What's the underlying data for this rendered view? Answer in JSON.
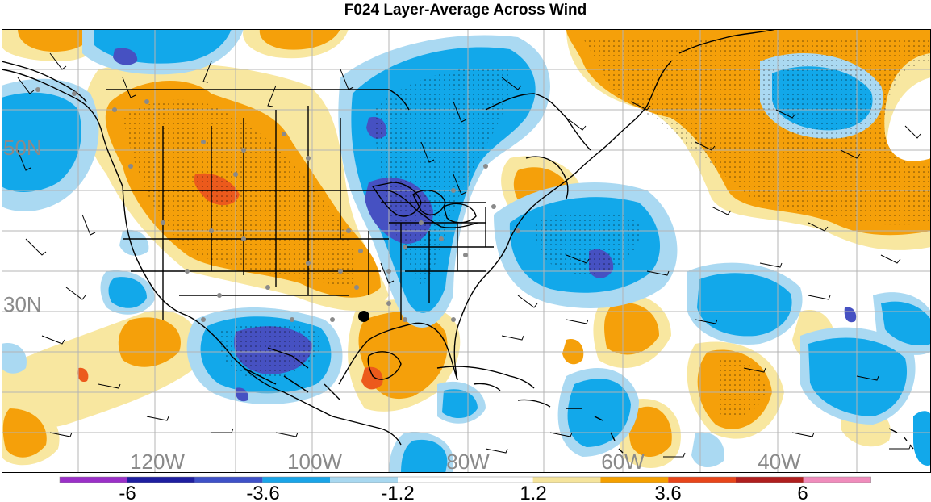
{
  "title": "F024 Layer-Average Across Wind",
  "map": {
    "lat_labels": [
      "50N",
      "30N"
    ],
    "lon_labels": [
      "120W",
      "100W",
      "80W",
      "60W",
      "40W"
    ],
    "label_color": "#8a8a8a",
    "grid_color": "#b4b4b4"
  },
  "colorbar": {
    "colors": [
      "#9b30c8",
      "#1f1fa0",
      "#3f51c8",
      "#1aa5e8",
      "#a8d8f0",
      "#ffffff",
      "#ffffff",
      "#f5e49c",
      "#f5a000",
      "#e8451a",
      "#b01f1f",
      "#f08cbc"
    ],
    "tick_labels": [
      "-6",
      "-3.6",
      "-1.2",
      "1.2",
      "3.6",
      "6"
    ]
  },
  "palette": {
    "orange": "#f5a00a",
    "light_yellow": "#f8e7a0",
    "deep_orange": "#ec5a1c",
    "cyan": "#12a8ea",
    "light_blue": "#aad9f2",
    "dark_blue": "#4651c2",
    "border": "#000000",
    "station": "#8a8a8a"
  }
}
